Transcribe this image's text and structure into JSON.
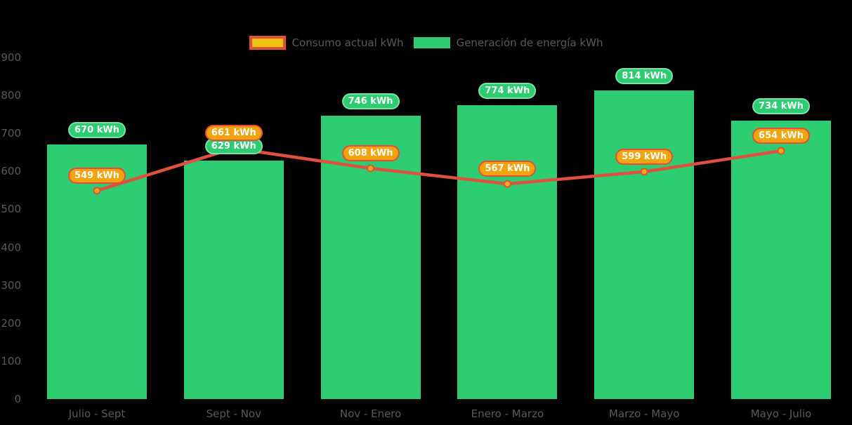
{
  "chart_data": {
    "type": "bar+line",
    "categories": [
      "Julio - Sept",
      "Sept - Nov",
      "Nov - Enero",
      "Enero - Marzo",
      "Marzo - Mayo",
      "Mayo - Julio"
    ],
    "series": [
      {
        "name": "Consumo actual kWh",
        "type": "line",
        "values": [
          549,
          661,
          608,
          567,
          599,
          654
        ]
      },
      {
        "name": "Generación de energía kWh",
        "type": "bar",
        "values": [
          670,
          629,
          746,
          774,
          814,
          734
        ]
      }
    ],
    "value_suffix": " kWh",
    "data_labels": {
      "line": [
        "549 kWh",
        "661 kWh",
        "608 kWh",
        "567 kWh",
        "599 kWh",
        "654 kWh"
      ],
      "bar": [
        "670 kWh",
        "629 kWh",
        "746 kWh",
        "774 kWh",
        "814 kWh",
        "734 kWh"
      ]
    },
    "y_ticks": [
      900,
      800,
      700,
      600,
      500,
      400,
      300,
      200,
      100,
      0
    ],
    "ylim": [
      0,
      900
    ],
    "grid": false,
    "legend_position": "top",
    "colors": {
      "bar": "#2ecc71",
      "line": "#e0503f",
      "marker": "#f2ab12",
      "pill-bar-bg": "#2ecc71",
      "pill-bar-border": "#7ce0a9",
      "pill-line-bg": "#f1a40e",
      "pill-line-border": "#e74c3c",
      "legend-line-fill": "#edc213",
      "axis-text": "#58595b",
      "pill-text": "#ffffff",
      "background": "#000000"
    }
  }
}
